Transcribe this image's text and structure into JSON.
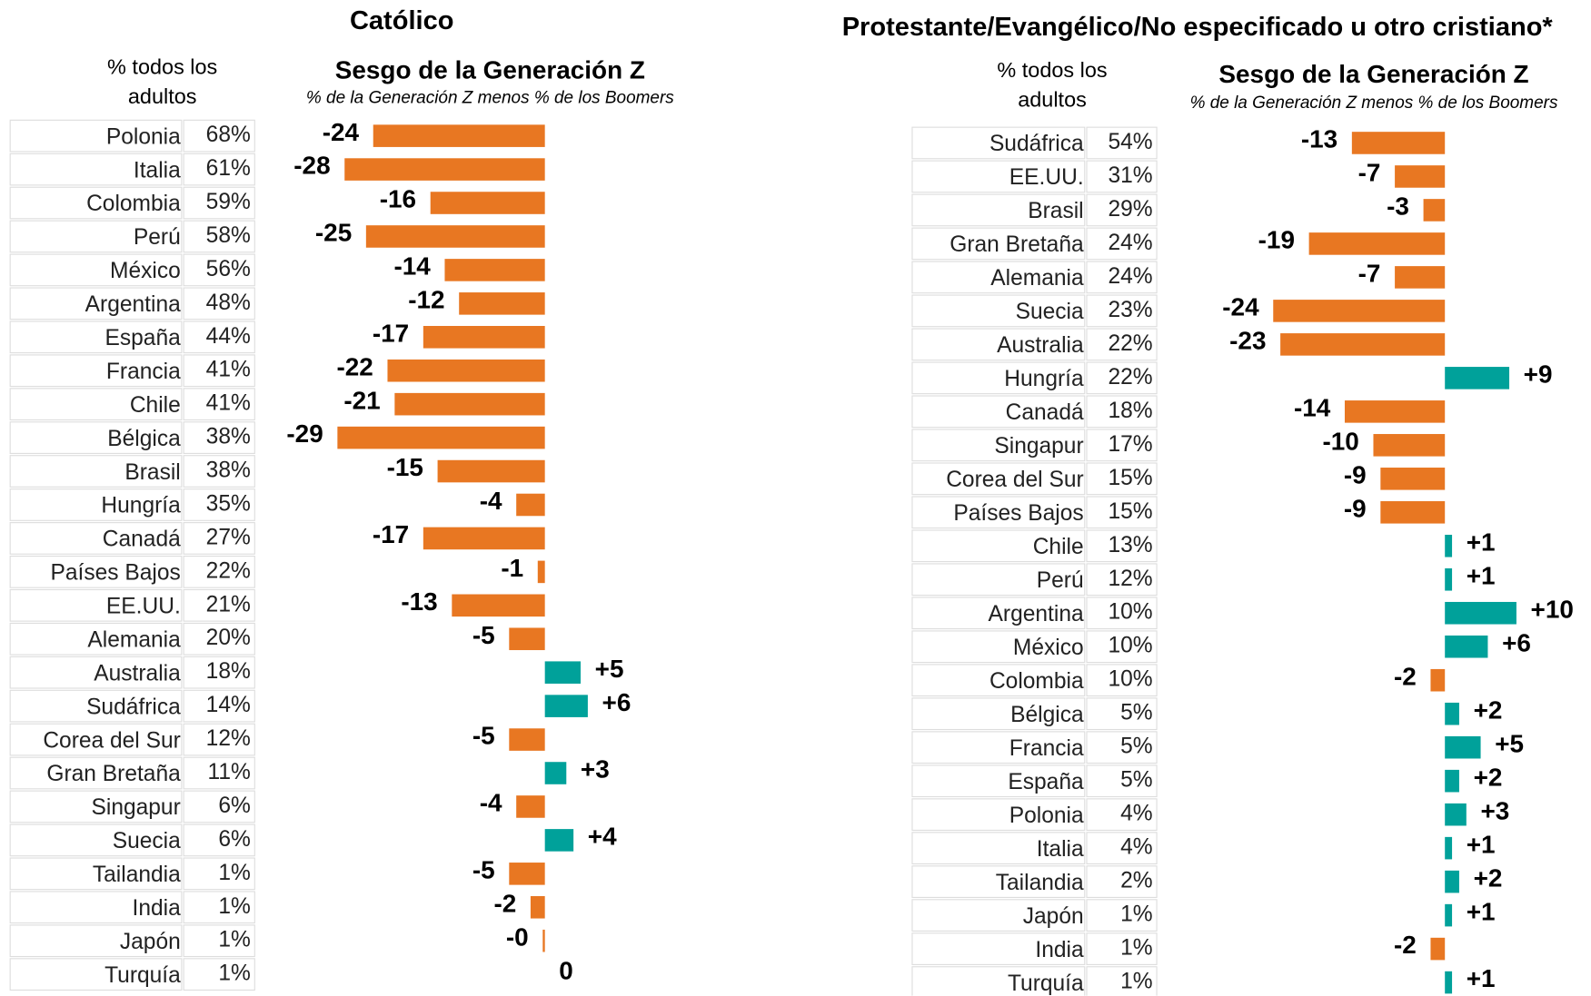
{
  "chart_data": [
    {
      "type": "bar",
      "orientation": "horizontal",
      "title": "Católico",
      "header": "% todos los adultos",
      "subtitle": "Sesgo de la Generación Z",
      "note": "% de la Generación Z menos % de los Boomers",
      "categories": [
        "Polonia",
        "Italia",
        "Colombia",
        "Perú",
        "México",
        "Argentina",
        "España",
        "Francia",
        "Chile",
        "Bélgica",
        "Brasil",
        "Hungría",
        "Canadá",
        "Países Bajos",
        "EE.UU.",
        "Alemania",
        "Australia",
        "Sudáfrica",
        "Corea del Sur",
        "Gran Bretaña",
        "Singapur",
        "Suecia",
        "Tailandia",
        "India",
        "Japón",
        "Turquía"
      ],
      "adults": [
        "68%",
        "61%",
        "59%",
        "58%",
        "56%",
        "48%",
        "44%",
        "41%",
        "41%",
        "38%",
        "38%",
        "35%",
        "27%",
        "22%",
        "21%",
        "20%",
        "18%",
        "14%",
        "12%",
        "11%",
        "6%",
        "6%",
        "1%",
        "1%",
        "1%",
        "1%"
      ],
      "values": [
        -24,
        -28,
        -16,
        -25,
        -14,
        -12,
        -17,
        -22,
        -21,
        -29,
        -15,
        -4,
        -17,
        -1,
        -13,
        -5,
        5,
        6,
        -5,
        3,
        -4,
        4,
        -5,
        -2,
        -0.3,
        0
      ],
      "value_labels": [
        "-24",
        "-28",
        "-16",
        "-25",
        "-14",
        "-12",
        "-17",
        "-22",
        "-21",
        "-29",
        "-15",
        "-4",
        "-17",
        "-1",
        "-13",
        "-5",
        "+5",
        "+6",
        "-5",
        "+3",
        "-4",
        "+4",
        "-5",
        "-2",
        "-0",
        "0"
      ],
      "negative_color": "#e87722",
      "positive_color": "#00a19a"
    },
    {
      "type": "bar",
      "orientation": "horizontal",
      "title": "Protestante/Evangélico/No especificado u otro cristiano*",
      "header": "% todos los adultos",
      "subtitle": "Sesgo de la Generación Z",
      "note": "% de la Generación Z menos % de los Boomers",
      "categories": [
        "Sudáfrica",
        "EE.UU.",
        "Brasil",
        "Gran Bretaña",
        "Alemania",
        "Suecia",
        "Australia",
        "Hungría",
        "Canadá",
        "Singapur",
        "Corea del Sur",
        "Países Bajos",
        "Chile",
        "Perú",
        "Argentina",
        "México",
        "Colombia",
        "Bélgica",
        "Francia",
        "España",
        "Polonia",
        "Italia",
        "Tailandia",
        "Japón",
        "India",
        "Turquía"
      ],
      "adults": [
        "54%",
        "31%",
        "29%",
        "24%",
        "24%",
        "23%",
        "22%",
        "22%",
        "18%",
        "17%",
        "15%",
        "15%",
        "13%",
        "12%",
        "10%",
        "10%",
        "10%",
        "5%",
        "5%",
        "5%",
        "4%",
        "4%",
        "2%",
        "1%",
        "1%",
        "1%"
      ],
      "values": [
        -13,
        -7,
        -3,
        -19,
        -7,
        -24,
        -23,
        9,
        -14,
        -10,
        -9,
        -9,
        1,
        1,
        10,
        6,
        -2,
        2,
        5,
        2,
        3,
        1,
        2,
        1,
        -2,
        1
      ],
      "value_labels": [
        "-13",
        "-7",
        "-3",
        "-19",
        "-7",
        "-24",
        "-23",
        "+9",
        "-14",
        "-10",
        "-9",
        "-9",
        "+1",
        "+1",
        "+10",
        "+6",
        "-2",
        "+2",
        "+5",
        "+2",
        "+3",
        "+1",
        "+2",
        "+1",
        "-2",
        "+1"
      ],
      "negative_color": "#e87722",
      "positive_color": "#00a19a"
    }
  ]
}
